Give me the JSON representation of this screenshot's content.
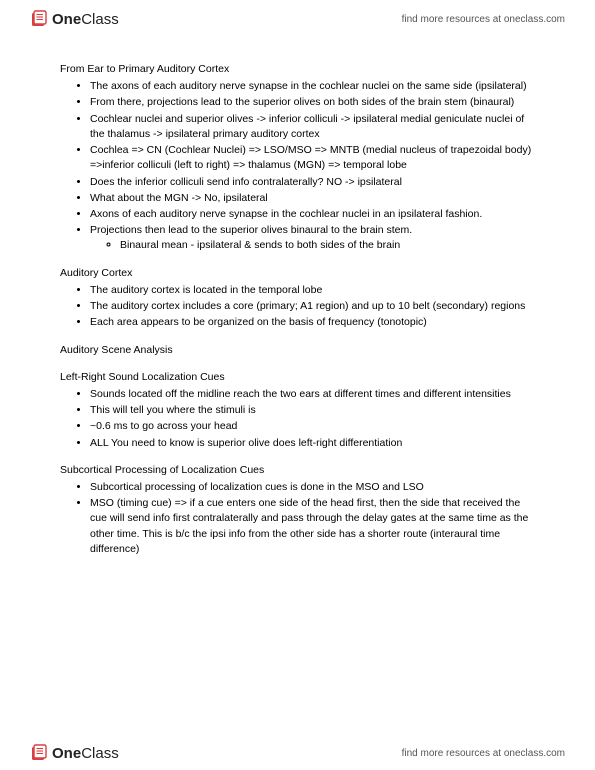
{
  "header": {
    "logo_bold": "One",
    "logo_rest": "Class",
    "link_text": "find more resources at oneclass.com"
  },
  "sections": [
    {
      "title": "From Ear to Primary Auditory Cortex",
      "items": [
        {
          "text": "The axons of each auditory nerve synapse in the cochlear nuclei on the same side (ipsilateral)"
        },
        {
          "text": "From there, projections lead to the superior olives on both sides of the brain stem (binaural)"
        },
        {
          "text": "Cochlear nuclei and superior olives -> inferior colliculi -> ipsilateral medial geniculate nuclei of the thalamus -> ipsilateral primary auditory cortex"
        },
        {
          "text": "Cochlea => CN (Cochlear Nuclei) => LSO/MSO => MNTB (medial nucleus of trapezoidal body) =>inferior colliculi (left to right) => thalamus (MGN) => temporal lobe"
        },
        {
          "text": "Does the inferior colliculi send info contralaterally? NO  -> ipsilateral"
        },
        {
          "text": "What about the MGN -> No, ipsilateral"
        },
        {
          "text": "Axons of each auditory nerve synapse in the cochlear nuclei in an ipsilateral fashion."
        },
        {
          "text": "Projections then lead to the superior olives binaural to the brain stem.",
          "sub": [
            {
              "text": "Binaural mean - ipsilateral & sends to both sides of the brain"
            }
          ]
        }
      ]
    },
    {
      "title": "Auditory Cortex",
      "items": [
        {
          "text": "The auditory cortex is located in the temporal lobe"
        },
        {
          "text": "The auditory cortex includes a core (primary; A1 region) and up to 10 belt (secondary) regions"
        },
        {
          "text": "Each area appears to be organized on the basis of frequency (tonotopic)"
        }
      ]
    },
    {
      "title": "Auditory Scene Analysis",
      "items": []
    },
    {
      "title": "Left-Right Sound Localization Cues",
      "items": [
        {
          "text": "Sounds located off the midline reach the two ears at different times and different intensities"
        },
        {
          "text": "This will tell you where the stimuli is"
        },
        {
          "text": "~0.6 ms to go across your head"
        },
        {
          "text": "ALL You need to know is superior olive does left-right differentiation"
        }
      ]
    },
    {
      "title": "Subcortical Processing of Localization Cues",
      "items": [
        {
          "text": "Subcortical processing of localization cues is done in the MSO and LSO"
        },
        {
          "text": "MSO (timing cue) => if a cue enters one side of the head first, then the side that received the cue will send info first contralaterally and pass through the delay gates at the same time as the other time. This is b/c the ipsi info from the other side has a shorter route (interaural time difference)"
        }
      ]
    }
  ],
  "footer": {
    "logo_bold": "One",
    "logo_rest": "Class",
    "link_text": "find more resources at oneclass.com"
  },
  "colors": {
    "logo_red": "#d84040",
    "text": "#000000",
    "link": "#555555",
    "background": "#ffffff"
  }
}
